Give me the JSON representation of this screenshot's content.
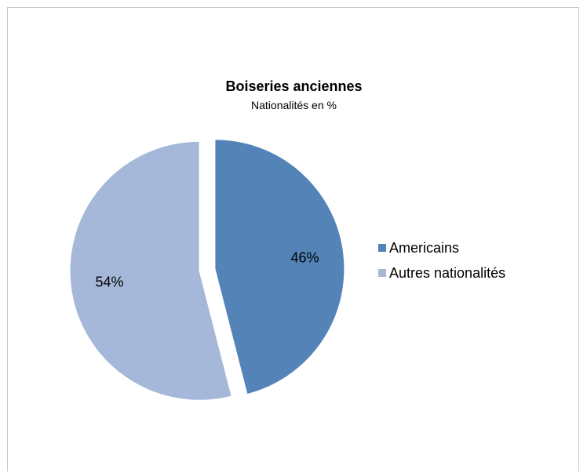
{
  "chart_data": {
    "type": "pie",
    "title": "Boiseries anciennes",
    "subtitle": "Nationalités en %",
    "categories": [
      "Americains",
      "Autres nationalités"
    ],
    "values": [
      46,
      54
    ],
    "data_labels": [
      "46%",
      "54%"
    ],
    "colors": [
      "#5483b8",
      "#a5b8da"
    ],
    "exploded": true,
    "legend_position": "right"
  }
}
